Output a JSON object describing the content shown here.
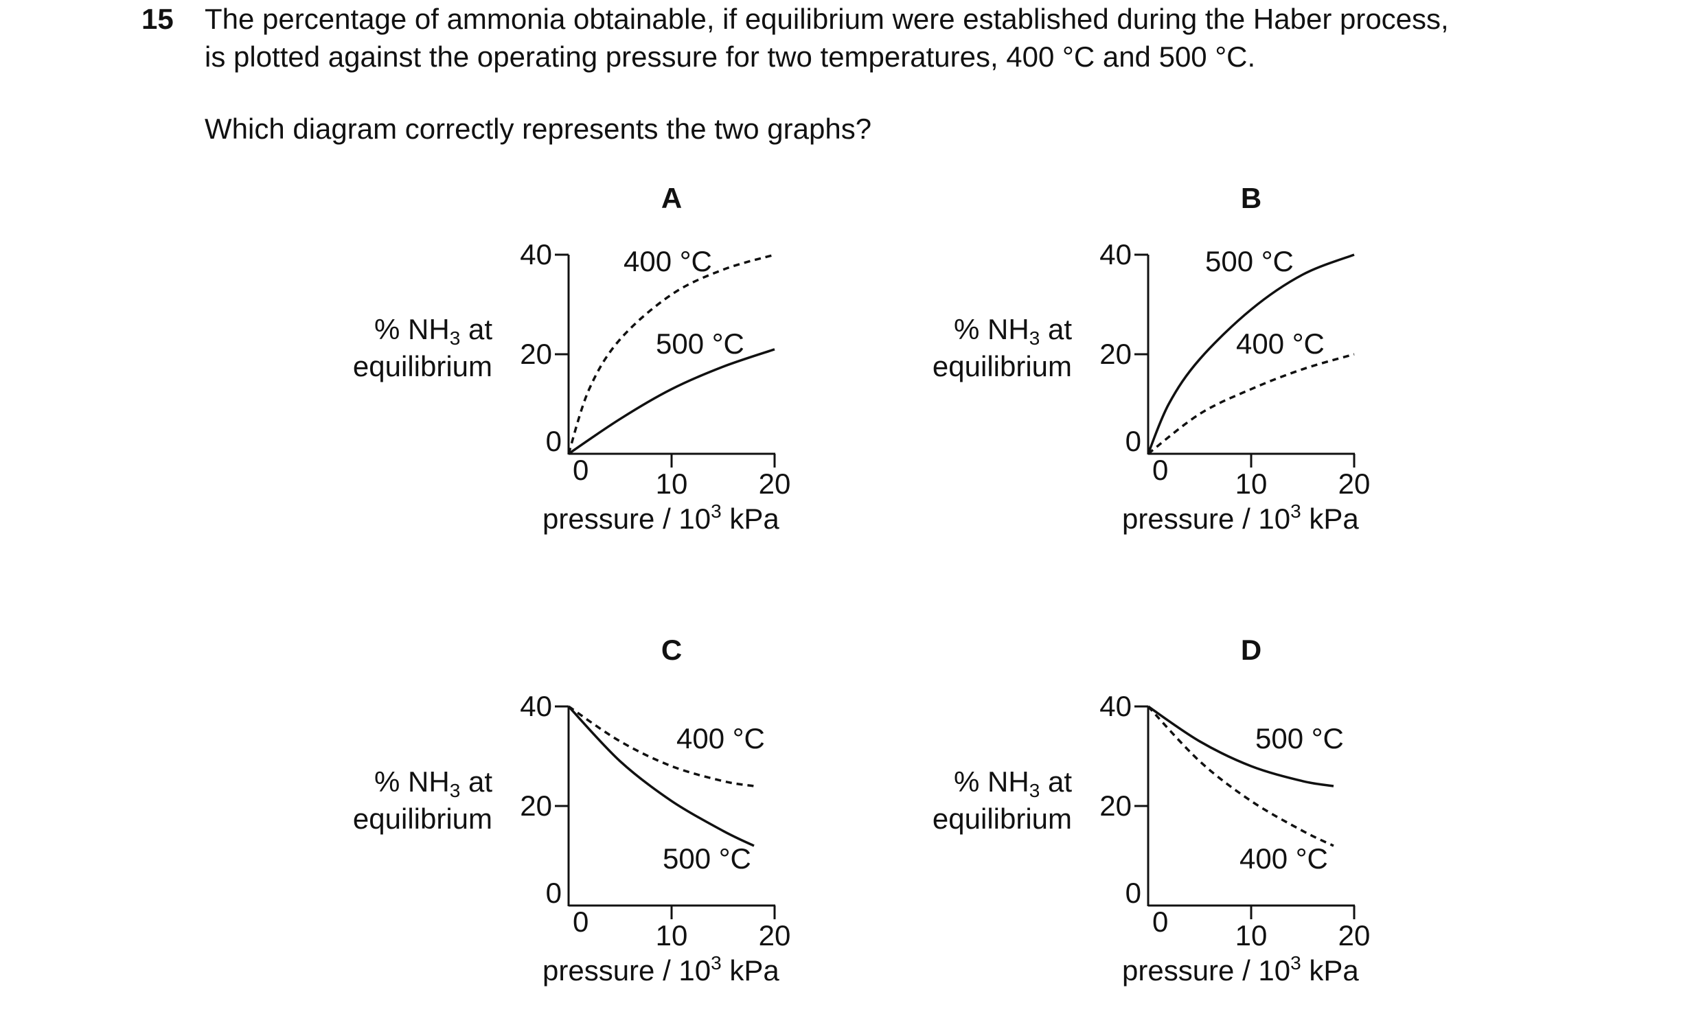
{
  "question": {
    "number": "15",
    "line1": "The percentage of ammonia obtainable, if equilibrium were established during the Haber process,",
    "line2": "is plotted against the operating pressure for two temperatures, 400 °C and 500 °C.",
    "prompt": "Which diagram correctly represents the two graphs?"
  },
  "axis_text": {
    "ylabel_pre": "% NH",
    "ylabel_sub": "3",
    "ylabel_post": " at",
    "ylabel_line2": "equilibrium",
    "xlabel_pre": "pressure / 10",
    "xlabel_sup": "3",
    "xlabel_post": " kPa"
  },
  "chart_data": [
    {
      "type": "line",
      "title": "A",
      "ylabel": "% NH3 at equilibrium",
      "xlabel": "pressure / 10^3 kPa",
      "x_ticks": [
        0,
        10,
        20
      ],
      "y_ticks": [
        0,
        20,
        40
      ],
      "xlim": [
        0,
        20
      ],
      "ylim": [
        0,
        40
      ],
      "series": [
        {
          "name": "400 °C",
          "style": "dashed",
          "x": [
            0,
            2,
            5,
            10,
            15,
            20
          ],
          "y": [
            0,
            13,
            23,
            32,
            37,
            40
          ]
        },
        {
          "name": "500 °C",
          "style": "solid",
          "x": [
            0,
            5,
            10,
            15,
            20
          ],
          "y": [
            0,
            7,
            13,
            17.5,
            21
          ]
        }
      ]
    },
    {
      "type": "line",
      "title": "B",
      "ylabel": "% NH3 at equilibrium",
      "xlabel": "pressure / 10^3 kPa",
      "x_ticks": [
        0,
        10,
        20
      ],
      "y_ticks": [
        0,
        20,
        40
      ],
      "xlim": [
        0,
        20
      ],
      "ylim": [
        0,
        40
      ],
      "series": [
        {
          "name": "500 °C",
          "style": "solid",
          "x": [
            0,
            2,
            5,
            10,
            15,
            20
          ],
          "y": [
            0,
            10,
            19,
            29,
            36,
            40
          ]
        },
        {
          "name": "400 °C",
          "style": "dashed",
          "x": [
            0,
            5,
            10,
            15,
            20
          ],
          "y": [
            0,
            8,
            13,
            17,
            20
          ]
        }
      ]
    },
    {
      "type": "line",
      "title": "C",
      "ylabel": "% NH3 at equilibrium",
      "xlabel": "pressure / 10^3 kPa",
      "x_ticks": [
        0,
        10,
        20
      ],
      "y_ticks": [
        0,
        20,
        40
      ],
      "xlim": [
        0,
        20
      ],
      "ylim": [
        0,
        40
      ],
      "series": [
        {
          "name": "400 °C",
          "style": "dashed",
          "x": [
            0,
            5,
            10,
            15,
            18
          ],
          "y": [
            40,
            33,
            28,
            25,
            24
          ]
        },
        {
          "name": "500 °C",
          "style": "solid",
          "x": [
            0,
            5,
            10,
            15,
            18
          ],
          "y": [
            40,
            29,
            21,
            15,
            12
          ]
        }
      ]
    },
    {
      "type": "line",
      "title": "D",
      "ylabel": "% NH3 at equilibrium",
      "xlabel": "pressure / 10^3 kPa",
      "x_ticks": [
        0,
        10,
        20
      ],
      "y_ticks": [
        0,
        20,
        40
      ],
      "xlim": [
        0,
        20
      ],
      "ylim": [
        0,
        40
      ],
      "series": [
        {
          "name": "500 °C",
          "style": "solid",
          "x": [
            0,
            5,
            10,
            15,
            18
          ],
          "y": [
            40,
            33,
            28,
            25,
            24
          ]
        },
        {
          "name": "400 °C",
          "style": "dashed",
          "x": [
            0,
            5,
            10,
            15,
            18
          ],
          "y": [
            40,
            29,
            21,
            15,
            12
          ]
        }
      ]
    }
  ]
}
